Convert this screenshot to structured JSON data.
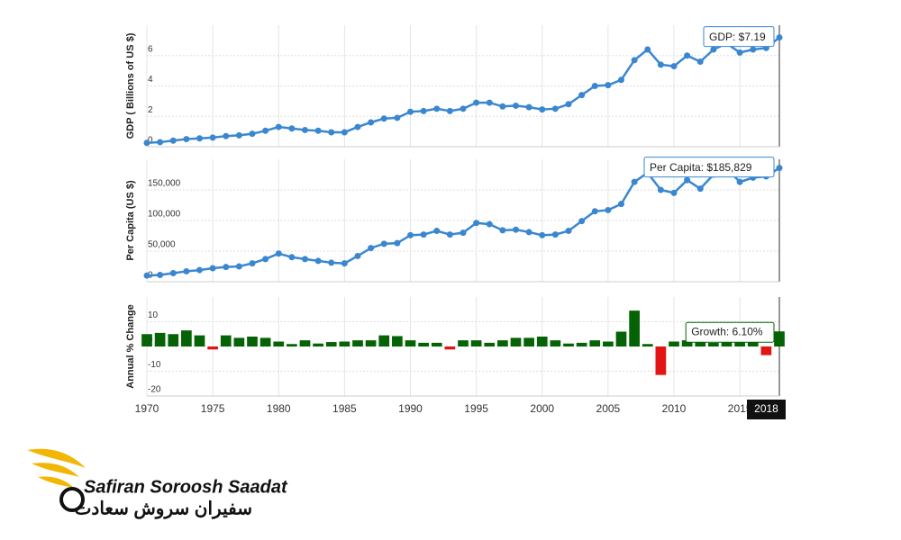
{
  "chart_data": [
    {
      "type": "line",
      "ylabel": "GDP ( Billions of US $)",
      "color": "#3a87d0",
      "x": [
        1970,
        1971,
        1972,
        1973,
        1974,
        1975,
        1976,
        1977,
        1978,
        1979,
        1980,
        1981,
        1982,
        1983,
        1984,
        1985,
        1986,
        1987,
        1988,
        1989,
        1990,
        1991,
        1992,
        1993,
        1994,
        1995,
        1996,
        1997,
        1998,
        1999,
        2000,
        2001,
        2002,
        2003,
        2004,
        2005,
        2006,
        2007,
        2008,
        2009,
        2010,
        2011,
        2012,
        2013,
        2014,
        2015,
        2016,
        2017,
        2018
      ],
      "values": [
        0.25,
        0.3,
        0.4,
        0.5,
        0.55,
        0.6,
        0.7,
        0.75,
        0.85,
        1.05,
        1.3,
        1.2,
        1.1,
        1.05,
        0.95,
        0.95,
        1.3,
        1.6,
        1.85,
        1.9,
        2.3,
        2.35,
        2.5,
        2.35,
        2.5,
        2.9,
        2.9,
        2.65,
        2.7,
        2.6,
        2.45,
        2.5,
        2.8,
        3.4,
        4.0,
        4.05,
        4.4,
        5.7,
        6.4,
        5.4,
        5.3,
        6.0,
        5.6,
        6.4,
        6.8,
        6.2,
        6.4,
        6.5,
        7.19
      ],
      "xlim": [
        1970,
        2018
      ],
      "xticks": [
        1970,
        1975,
        1980,
        1985,
        1990,
        1995,
        2000,
        2005,
        2010,
        2015
      ],
      "ylim": [
        0,
        8
      ],
      "yticks": [
        0,
        2,
        4,
        6
      ],
      "grid": true,
      "annotation": "GDP: $7.19"
    },
    {
      "type": "line",
      "ylabel": "Per Capita (US $)",
      "color": "#3a87d0",
      "x": [
        1970,
        1971,
        1972,
        1973,
        1974,
        1975,
        1976,
        1977,
        1978,
        1979,
        1980,
        1981,
        1982,
        1983,
        1984,
        1985,
        1986,
        1987,
        1988,
        1989,
        1990,
        1991,
        1992,
        1993,
        1994,
        1995,
        1996,
        1997,
        1998,
        1999,
        2000,
        2001,
        2002,
        2003,
        2004,
        2005,
        2006,
        2007,
        2008,
        2009,
        2010,
        2011,
        2012,
        2013,
        2014,
        2015,
        2016,
        2017,
        2018
      ],
      "values": [
        10000,
        11000,
        14000,
        17000,
        19000,
        22000,
        24000,
        25000,
        30000,
        37000,
        46000,
        40000,
        37000,
        34000,
        31000,
        30000,
        42000,
        55000,
        62000,
        63000,
        76000,
        77000,
        83000,
        77000,
        80000,
        96000,
        94000,
        84000,
        85000,
        81000,
        76000,
        77000,
        83000,
        99000,
        115000,
        117000,
        127000,
        163000,
        178000,
        150000,
        145000,
        166000,
        152000,
        175000,
        185000,
        163000,
        170000,
        172000,
        185829
      ],
      "xlim": [
        1970,
        2018
      ],
      "xticks": [
        1970,
        1975,
        1980,
        1985,
        1990,
        1995,
        2000,
        2005,
        2010,
        2015
      ],
      "ylim": [
        0,
        200000
      ],
      "yticks": [
        0,
        {
          "value": 50000,
          "label": "50,000"
        },
        {
          "value": 100000,
          "label": "100,000"
        },
        {
          "value": 150000,
          "label": "150,000"
        }
      ],
      "grid": true,
      "annotation": "Per Capita: $185,829"
    },
    {
      "type": "bar",
      "ylabel": "Annual % Change",
      "colors": {
        "positive": "#056305",
        "negative": "#e31414"
      },
      "x": [
        1970,
        1971,
        1972,
        1973,
        1974,
        1975,
        1976,
        1977,
        1978,
        1979,
        1980,
        1981,
        1982,
        1983,
        1984,
        1985,
        1986,
        1987,
        1988,
        1989,
        1990,
        1991,
        1992,
        1993,
        1994,
        1995,
        1996,
        1997,
        1998,
        1999,
        2000,
        2001,
        2002,
        2003,
        2004,
        2005,
        2006,
        2007,
        2008,
        2009,
        2010,
        2011,
        2012,
        2013,
        2014,
        2015,
        2016,
        2017,
        2018
      ],
      "values": [
        5,
        5.5,
        5,
        6.5,
        4.5,
        -1.2,
        4.5,
        3.5,
        4,
        3.5,
        2,
        1,
        2.5,
        1.2,
        1.8,
        2,
        2.5,
        2.5,
        4.5,
        4.2,
        2.5,
        1.5,
        1.5,
        -1.2,
        2.5,
        2.5,
        1.5,
        2.5,
        3.5,
        3.5,
        4,
        2.5,
        1.2,
        1.5,
        2.5,
        2,
        6,
        14.5,
        1,
        -11.5,
        2,
        2.5,
        2,
        1.5,
        2,
        2.5,
        2,
        -3.5,
        6.1
      ],
      "xlim": [
        1970,
        2018
      ],
      "xticks": [
        1970,
        1975,
        1980,
        1985,
        1990,
        1995,
        2000,
        2005,
        2010,
        2015
      ],
      "ylim": [
        -20,
        20
      ],
      "yticks": [
        -20,
        -10,
        0,
        10
      ],
      "grid": true,
      "annotation": "Growth: 6.10%",
      "highlight_x": 2018
    }
  ],
  "logo": {
    "name": "Safiran Soroosh Saadat",
    "name_fa": "سفیران سروش سعادت"
  }
}
